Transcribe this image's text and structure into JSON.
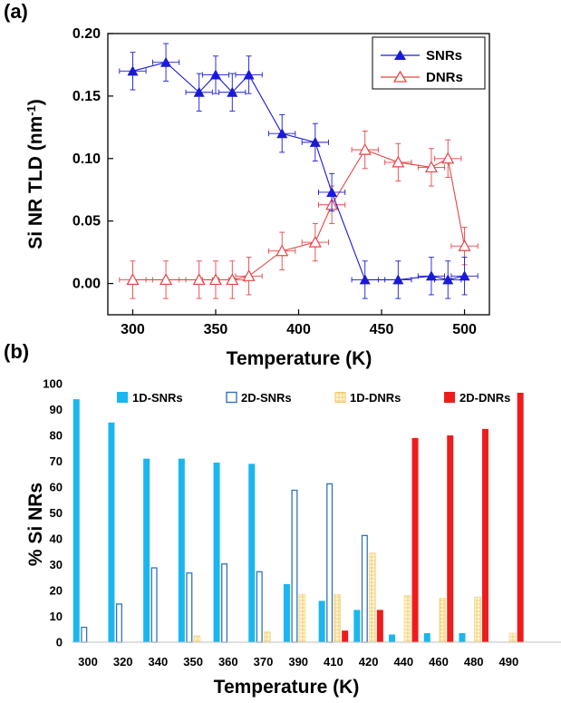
{
  "panels": {
    "a_label": "(a)",
    "b_label": "(b)"
  },
  "colors": {
    "snr": "#1a1ad6",
    "dnr": "#e84545",
    "c1d_snr": "#1ab6ef",
    "c2d_snr": "#2f73bf",
    "c1d_dnr": "#f5d98c",
    "c2d_dnr": "#ee1c1c"
  },
  "chart_data": [
    {
      "type": "line",
      "xlabel": "Temperature (K)",
      "ylabel": "Si NR TLD (nm",
      "ylabel_sup": "-1",
      "ylabel_end": ")",
      "xlim": [
        285,
        515
      ],
      "ylim": [
        -0.025,
        0.2
      ],
      "xticks": [
        300,
        350,
        400,
        450,
        500
      ],
      "yticks": [
        "0.00",
        "0.05",
        "0.10",
        "0.15",
        "0.20"
      ],
      "legend_position": "top-right",
      "x_error": 8,
      "y_error": 0.015,
      "series": [
        {
          "name": "SNRs",
          "marker": "filled-triangle",
          "x": [
            300,
            320,
            340,
            350,
            360,
            370,
            390,
            410,
            420,
            440,
            460,
            480,
            490,
            500
          ],
          "y": [
            0.17,
            0.177,
            0.153,
            0.167,
            0.153,
            0.167,
            0.12,
            0.113,
            0.073,
            0.003,
            0.003,
            0.006,
            0.003,
            0.006
          ]
        },
        {
          "name": "DNRs",
          "marker": "open-triangle",
          "x": [
            300,
            320,
            340,
            350,
            360,
            370,
            390,
            410,
            420,
            440,
            460,
            480,
            490,
            500
          ],
          "y": [
            0.003,
            0.003,
            0.003,
            0.003,
            0.003,
            0.006,
            0.026,
            0.033,
            0.063,
            0.107,
            0.097,
            0.093,
            0.1,
            0.03
          ]
        }
      ]
    },
    {
      "type": "bar",
      "xlabel": "Temperature (K)",
      "ylabel": "% Si NRs",
      "ylim": [
        0,
        100
      ],
      "yticks": [
        0,
        10,
        20,
        30,
        40,
        50,
        60,
        70,
        80,
        90,
        100
      ],
      "legend_position": "top",
      "categories": [
        "300",
        "320",
        "340",
        "350",
        "360",
        "370",
        "390",
        "410",
        "420",
        "440",
        "460",
        "480",
        "490"
      ],
      "series": [
        {
          "name": "1D-SNRs",
          "style": "solid",
          "values": [
            94,
            85,
            71,
            71,
            69.5,
            69,
            22.5,
            16,
            12.5,
            3,
            3.5,
            3.5,
            0
          ]
        },
        {
          "name": "2D-SNRs",
          "style": "outline",
          "values": [
            6,
            15,
            29,
            27,
            30.5,
            27.5,
            59,
            61.5,
            41.5,
            0,
            0,
            0,
            0
          ]
        },
        {
          "name": "1D-DNRs",
          "style": "hatched",
          "values": [
            0,
            0,
            0,
            2.5,
            0,
            4,
            18.5,
            18.5,
            34.5,
            18,
            17,
            17.5,
            3.5
          ]
        },
        {
          "name": "2D-DNRs",
          "style": "solid",
          "values": [
            0,
            0,
            0,
            0,
            0,
            0,
            0,
            4.5,
            12.5,
            79,
            80,
            82.5,
            96.5
          ]
        }
      ]
    }
  ]
}
